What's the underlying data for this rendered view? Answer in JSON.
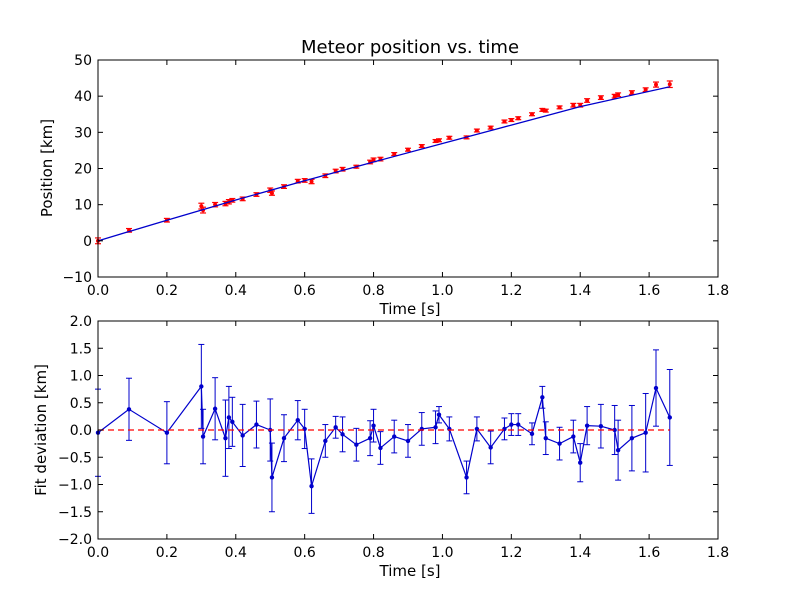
{
  "chart_data": [
    {
      "type": "scatter",
      "title": "Meteor position vs. time",
      "xlabel": "Time [s]",
      "ylabel": "Position [km]",
      "xlim": [
        0.0,
        1.8
      ],
      "ylim": [
        -10,
        50
      ],
      "xticks": [
        "0.0",
        "0.2",
        "0.4",
        "0.6",
        "0.8",
        "1.0",
        "1.2",
        "1.4",
        "1.6",
        "1.8"
      ],
      "yticks": [
        "−10",
        "0",
        "10",
        "20",
        "30",
        "40",
        "50"
      ],
      "grid": false,
      "colors": {
        "points": "#ff0000",
        "fit": "#0000cc"
      },
      "series": [
        {
          "kind": "points-with-errorbars",
          "x": [
            0.0,
            0.09,
            0.2,
            0.3,
            0.305,
            0.34,
            0.37,
            0.38,
            0.39,
            0.42,
            0.46,
            0.5,
            0.505,
            0.54,
            0.58,
            0.6,
            0.62,
            0.66,
            0.69,
            0.71,
            0.75,
            0.79,
            0.8,
            0.82,
            0.86,
            0.9,
            0.94,
            0.98,
            0.99,
            1.02,
            1.07,
            1.1,
            1.14,
            1.18,
            1.2,
            1.22,
            1.26,
            1.29,
            1.3,
            1.34,
            1.38,
            1.4,
            1.42,
            1.46,
            1.5,
            1.51,
            1.55,
            1.59,
            1.62,
            1.66
          ],
          "y": [
            0.0,
            2.9,
            5.7,
            9.6,
            8.5,
            10.0,
            10.3,
            10.8,
            11.2,
            11.6,
            12.8,
            14.0,
            13.2,
            15.0,
            16.5,
            16.7,
            16.4,
            18.0,
            19.3,
            19.8,
            20.5,
            21.8,
            22.4,
            22.6,
            24.0,
            25.2,
            26.2,
            27.6,
            27.8,
            28.5,
            28.6,
            30.5,
            31.3,
            33.0,
            33.4,
            33.9,
            35.0,
            36.2,
            36.0,
            36.9,
            37.5,
            37.5,
            38.8,
            39.6,
            40.0,
            40.4,
            41.0,
            41.8,
            43.2,
            43.3
          ],
          "yerr": [
            0.8,
            0.5,
            0.5,
            0.8,
            0.8,
            0.6,
            0.6,
            0.6,
            0.5,
            0.5,
            0.5,
            0.6,
            0.6,
            0.5,
            0.5,
            0.5,
            0.6,
            0.5,
            0.5,
            0.5,
            0.4,
            0.5,
            0.5,
            0.5,
            0.4,
            0.4,
            0.4,
            0.4,
            0.4,
            0.4,
            0.4,
            0.4,
            0.4,
            0.4,
            0.4,
            0.4,
            0.4,
            0.4,
            0.4,
            0.4,
            0.5,
            0.5,
            0.5,
            0.5,
            0.5,
            0.5,
            0.5,
            0.5,
            0.7,
            0.9
          ]
        },
        {
          "kind": "fit-line",
          "x": [
            0.0,
            0.2,
            0.4,
            0.6,
            0.8,
            1.0,
            1.2,
            1.4,
            1.66
          ],
          "y": [
            0.0,
            5.7,
            11.3,
            16.6,
            21.8,
            26.9,
            32.0,
            37.1,
            42.6
          ]
        }
      ]
    },
    {
      "type": "line",
      "title": "",
      "xlabel": "Time [s]",
      "ylabel": "Fit deviation [km]",
      "xlim": [
        0.0,
        1.8
      ],
      "ylim": [
        -2.0,
        2.0
      ],
      "xticks": [
        "0.0",
        "0.2",
        "0.4",
        "0.6",
        "0.8",
        "1.0",
        "1.2",
        "1.4",
        "1.6",
        "1.8"
      ],
      "yticks": [
        "−2.0",
        "−1.5",
        "−1.0",
        "−0.5",
        "0.0",
        "0.5",
        "1.0",
        "1.5",
        "2.0"
      ],
      "grid": false,
      "colors": {
        "deviation": "#0000cc",
        "zero_line": "#ff0000"
      },
      "series": [
        {
          "kind": "line-with-errorbars",
          "x": [
            0.0,
            0.09,
            0.2,
            0.3,
            0.305,
            0.34,
            0.37,
            0.38,
            0.39,
            0.42,
            0.46,
            0.5,
            0.505,
            0.54,
            0.58,
            0.6,
            0.62,
            0.66,
            0.69,
            0.71,
            0.75,
            0.79,
            0.8,
            0.82,
            0.86,
            0.9,
            0.94,
            0.98,
            0.99,
            1.02,
            1.07,
            1.1,
            1.14,
            1.18,
            1.2,
            1.22,
            1.26,
            1.29,
            1.3,
            1.34,
            1.38,
            1.4,
            1.42,
            1.46,
            1.5,
            1.51,
            1.55,
            1.59,
            1.62,
            1.66
          ],
          "y": [
            -0.05,
            0.38,
            -0.05,
            0.8,
            -0.12,
            0.39,
            -0.15,
            0.23,
            0.15,
            -0.1,
            0.1,
            0.0,
            -0.87,
            -0.15,
            0.18,
            0.02,
            -1.03,
            -0.2,
            0.05,
            -0.08,
            -0.27,
            -0.15,
            0.08,
            -0.33,
            -0.12,
            -0.2,
            0.02,
            0.05,
            0.28,
            0.02,
            -0.87,
            0.02,
            -0.32,
            0.02,
            0.1,
            0.1,
            -0.07,
            0.6,
            -0.15,
            -0.25,
            -0.12,
            -0.6,
            0.08,
            0.07,
            0.0,
            -0.37,
            -0.15,
            -0.05,
            0.77,
            0.23
          ],
          "yerr": [
            0.8,
            0.57,
            0.57,
            0.77,
            0.5,
            0.57,
            0.7,
            0.57,
            0.45,
            0.57,
            0.43,
            0.57,
            0.63,
            0.43,
            0.36,
            0.36,
            0.5,
            0.3,
            0.2,
            0.32,
            0.3,
            0.32,
            0.3,
            0.3,
            0.3,
            0.3,
            0.3,
            0.3,
            0.15,
            0.22,
            0.3,
            0.22,
            0.3,
            0.2,
            0.2,
            0.2,
            0.2,
            0.2,
            0.3,
            0.3,
            0.3,
            0.35,
            0.35,
            0.4,
            0.45,
            0.55,
            0.6,
            0.72,
            0.7,
            0.88
          ]
        },
        {
          "kind": "zero-reference",
          "x": [
            0.0,
            1.66
          ],
          "y": [
            0.0,
            0.0
          ]
        }
      ]
    }
  ]
}
